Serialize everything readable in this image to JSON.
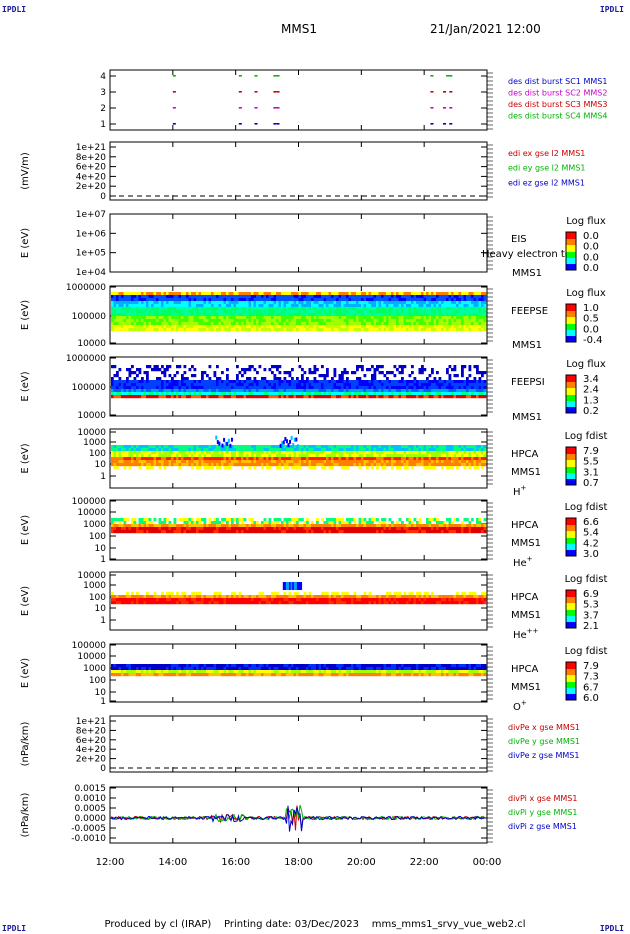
{
  "corners": {
    "tl": "IPDLI",
    "tr": "IPDLI",
    "bl": "IPDLI",
    "br": "IPDLI"
  },
  "header": {
    "title": "MMS1",
    "datetime": "21/Jan/2021 12:00"
  },
  "footer": {
    "produced_by": "Produced by cl (IRAP)",
    "printing_date": "Printing date: 03/Dec/2023",
    "filename": "mms_mms1_srvy_vue_web2.cl"
  },
  "x_axis": {
    "ticks": [
      "12:00",
      "14:00",
      "16:00",
      "18:00",
      "20:00",
      "22:00",
      "00:00"
    ],
    "range_hours": [
      12,
      24
    ]
  },
  "colors": {
    "blue": "#0000c8",
    "magenta": "#c800c8",
    "red": "#c80000",
    "green": "#00b400",
    "spectrogram": [
      "#0000ff",
      "#00ffff",
      "#00ff00",
      "#ffff00",
      "#ff8000",
      "#ff0000"
    ]
  },
  "chart_data": [
    {
      "id": "burst",
      "type": "scatter",
      "ylabel": "",
      "yticks": [
        "4",
        "3",
        "2",
        "1"
      ],
      "legend": [
        {
          "text": "des dist burst SC1 MMS1",
          "color": "#0000c8"
        },
        {
          "text": "des dist burst SC2 MMS2",
          "color": "#c800c8"
        },
        {
          "text": "des dist burst SC3 MMS3",
          "color": "#c80000"
        },
        {
          "text": "des dist burst SC4 MMS4",
          "color": "#00b400"
        }
      ],
      "series": [
        {
          "y": 4,
          "color": "#00b400",
          "x": [
            14.0,
            16.1,
            16.6,
            17.2,
            17.3,
            22.2,
            22.7,
            22.8
          ]
        },
        {
          "y": 3,
          "color": "#c80000",
          "x": [
            14.0,
            16.1,
            16.6,
            17.2,
            17.3,
            22.2,
            22.6,
            22.8
          ]
        },
        {
          "y": 2,
          "color": "#c800c8",
          "x": [
            14.0,
            16.1,
            16.6,
            17.2,
            17.3,
            22.2,
            22.6,
            22.8
          ]
        },
        {
          "y": 1,
          "color": "#0000c8",
          "x": [
            14.0,
            16.1,
            16.6,
            17.2,
            17.3,
            22.2,
            22.6,
            22.8
          ]
        }
      ]
    },
    {
      "id": "edi",
      "type": "line",
      "ylabel": "(mV/m)",
      "yticks": [
        "1e+21",
        "8e+20",
        "6e+20",
        "4e+20",
        "2e+20",
        "0"
      ],
      "legend": [
        {
          "text": "edi ex gse l2 MMS1",
          "color": "#c80000"
        },
        {
          "text": "edi ey gse l2 MMS1",
          "color": "#00b400"
        },
        {
          "text": "edi ez gse l2 MMS1",
          "color": "#0000c8"
        }
      ]
    },
    {
      "id": "eis",
      "type": "heatmap",
      "ylabel": "E (eV)",
      "yticks": [
        "1e+07",
        "1e+06",
        "1e+05",
        "1e+04"
      ],
      "right_labels": [
        "EIS",
        "MMS1"
      ],
      "overlay": "Heavy electron to",
      "cbar": {
        "title": "Log flux",
        "ticks": [
          "0.0",
          "0.0",
          "0.0",
          "0.0"
        ]
      }
    },
    {
      "id": "feepse",
      "type": "heatmap",
      "ylabel": "E (eV)",
      "yticks": [
        "1000000",
        "100000",
        "10000"
      ],
      "right_labels": [
        "FEEPSE",
        "MMS1"
      ],
      "cbar": {
        "title": "Log flux",
        "ticks": [
          "1.0",
          "0.5",
          "0.0",
          "-0.4"
        ]
      }
    },
    {
      "id": "feepsi",
      "type": "heatmap",
      "ylabel": "E (eV)",
      "yticks": [
        "1000000",
        "100000",
        "10000"
      ],
      "right_labels": [
        "FEEPSI",
        "MMS1"
      ],
      "cbar": {
        "title": "Log flux",
        "ticks": [
          "3.4",
          "2.4",
          "1.3",
          "0.2"
        ]
      }
    },
    {
      "id": "hpca_h",
      "type": "heatmap",
      "ylabel": "E (eV)",
      "yticks": [
        "10000",
        "1000",
        "100",
        "10",
        "1"
      ],
      "right_labels": [
        "HPCA",
        "MMS1",
        "H+"
      ],
      "cbar": {
        "title": "Log fdist",
        "ticks": [
          "7.9",
          "5.5",
          "3.1",
          "0.7"
        ]
      }
    },
    {
      "id": "hpca_he",
      "type": "heatmap",
      "ylabel": "E (eV)",
      "yticks": [
        "100000",
        "10000",
        "1000",
        "100",
        "10",
        "1"
      ],
      "right_labels": [
        "HPCA",
        "MMS1",
        "He+"
      ],
      "cbar": {
        "title": "Log fdist",
        "ticks": [
          "6.6",
          "5.4",
          "4.2",
          "3.0"
        ]
      }
    },
    {
      "id": "hpca_hepp",
      "type": "heatmap",
      "ylabel": "E (eV)",
      "yticks": [
        "10000",
        "1000",
        "100",
        "10",
        "1"
      ],
      "right_labels": [
        "HPCA",
        "MMS1",
        "He++"
      ],
      "cbar": {
        "title": "Log fdist",
        "ticks": [
          "6.9",
          "5.3",
          "3.7",
          "2.1"
        ]
      }
    },
    {
      "id": "hpca_o",
      "type": "heatmap",
      "ylabel": "E (eV)",
      "yticks": [
        "100000",
        "10000",
        "1000",
        "100",
        "10",
        "1"
      ],
      "right_labels": [
        "HPCA",
        "MMS1",
        "O+"
      ],
      "cbar": {
        "title": "Log fdist",
        "ticks": [
          "7.9",
          "7.3",
          "6.7",
          "6.0"
        ]
      }
    },
    {
      "id": "divpe",
      "type": "line",
      "ylabel": "(nPa/km)",
      "yticks": [
        "1e+21",
        "8e+20",
        "6e+20",
        "4e+20",
        "2e+20",
        "0"
      ],
      "legend": [
        {
          "text": "divPe x gse MMS1",
          "color": "#c80000"
        },
        {
          "text": "divPe y gse MMS1",
          "color": "#00b400"
        },
        {
          "text": "divPe z gse MMS1",
          "color": "#0000c8"
        }
      ]
    },
    {
      "id": "divpi",
      "type": "line",
      "ylabel": "(nPa/km)",
      "yticks": [
        "0.0015",
        "0.0010",
        "0.0005",
        "0.0000",
        "-0.0005",
        "-0.0010"
      ],
      "ylim": [
        -0.00125,
        0.00155
      ],
      "legend": [
        {
          "text": "divPi x gse MMS1",
          "color": "#c80000"
        },
        {
          "text": "divPi y gse MMS1",
          "color": "#00b400"
        },
        {
          "text": "divPi z gse MMS1",
          "color": "#0000c8"
        }
      ]
    }
  ]
}
